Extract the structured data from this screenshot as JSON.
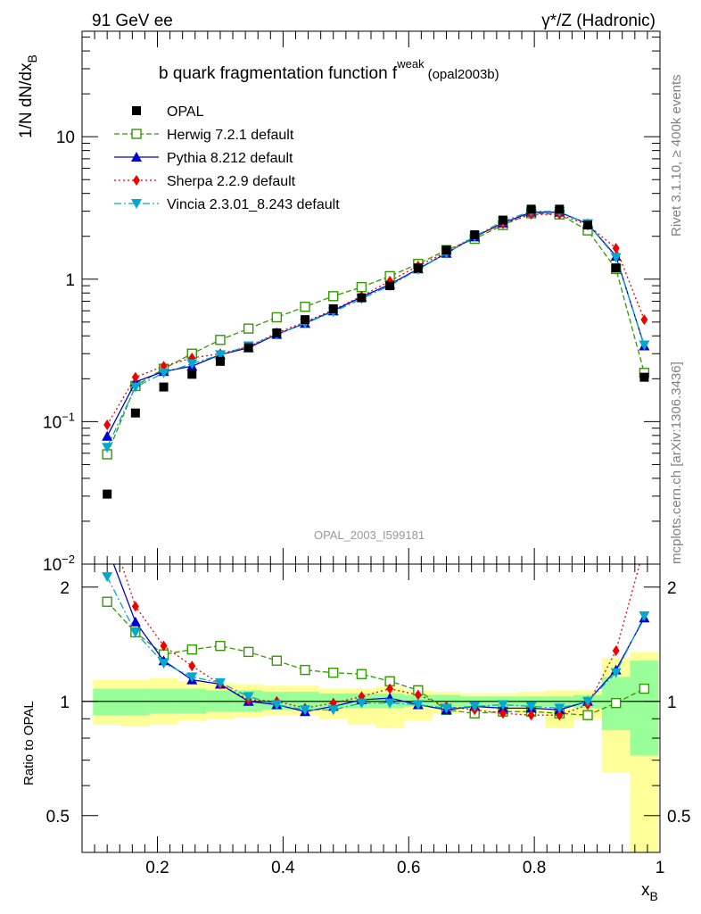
{
  "header": {
    "left": "91 GeV ee",
    "right": "γ*/Z (Hadronic)"
  },
  "plot_title": {
    "main": "b quark fragmentation function f",
    "sup": "weak",
    "sub": "(opal2003b)"
  },
  "watermark": "OPAL_2003_I599181",
  "side_text": {
    "top": "Rivet 3.1.10, ≥ 400k events",
    "bottom": "mcplots.cern.ch [arXiv:1306.3436]"
  },
  "axes": {
    "main_ylabel": "1/N dN/dx",
    "main_ylabel_sub": "B",
    "ratio_ylabel": "Ratio to OPAL",
    "xlabel": "x",
    "xlabel_sub": "B",
    "main_yticks": [
      {
        "v": 0.01,
        "base": "10",
        "exp": "−2"
      },
      {
        "v": 0.1,
        "base": "10",
        "exp": "−1"
      },
      {
        "v": 1,
        "base": "1",
        "exp": ""
      },
      {
        "v": 10,
        "base": "10",
        "exp": ""
      }
    ],
    "ratio_yticks": [
      "0.5",
      "1",
      "2"
    ],
    "xticks": [
      "0.2",
      "0.4",
      "0.6",
      "0.8",
      "1"
    ]
  },
  "legend": [
    {
      "key": "opal",
      "label": "OPAL"
    },
    {
      "key": "herwig",
      "label": "Herwig 7.2.1 default"
    },
    {
      "key": "pythia",
      "label": "Pythia 8.212 default"
    },
    {
      "key": "sherpa",
      "label": "Sherpa 2.2.9 default"
    },
    {
      "key": "vincia",
      "label": "Vincia 2.3.01_8.243 default"
    }
  ],
  "chart_data": {
    "type": "scatter",
    "title": "b quark fragmentation function f weak (opal2003b)",
    "xlabel": "xB",
    "ylabel": "1/N dN/dxB",
    "xlim": [
      0.08,
      1.0
    ],
    "ylim_main": [
      0.01,
      55
    ],
    "yscale_main": "log",
    "ylim_ratio": [
      0.4,
      2.3
    ],
    "yscale_ratio": "log",
    "legend_position": "top-left",
    "x": [
      0.12,
      0.165,
      0.21,
      0.255,
      0.3,
      0.345,
      0.39,
      0.435,
      0.48,
      0.525,
      0.57,
      0.615,
      0.66,
      0.705,
      0.75,
      0.795,
      0.84,
      0.885,
      0.93,
      0.975
    ],
    "series": [
      {
        "name": "OPAL",
        "key": "opal",
        "color": "#000000",
        "marker": "square-filled",
        "line": "none",
        "values": [
          0.031,
          0.115,
          0.175,
          0.215,
          0.265,
          0.33,
          0.42,
          0.52,
          0.62,
          0.74,
          0.9,
          1.2,
          1.6,
          2.05,
          2.6,
          3.1,
          3.1,
          2.4,
          1.2,
          0.205
        ]
      },
      {
        "name": "Herwig 7.2.1 default",
        "key": "herwig",
        "color": "#339900",
        "marker": "square-open",
        "line": "dashed",
        "values": [
          0.059,
          0.178,
          0.235,
          0.3,
          0.375,
          0.45,
          0.54,
          0.64,
          0.76,
          0.88,
          1.05,
          1.28,
          1.6,
          1.92,
          2.4,
          2.9,
          2.85,
          2.2,
          1.18,
          0.22
        ]
      },
      {
        "name": "Pythia 8.212 default",
        "key": "pythia",
        "color": "#0000cc",
        "marker": "triangle-up",
        "line": "solid",
        "values": [
          0.079,
          0.19,
          0.225,
          0.245,
          0.295,
          0.33,
          0.41,
          0.49,
          0.6,
          0.75,
          0.92,
          1.18,
          1.52,
          1.98,
          2.48,
          2.95,
          2.95,
          2.45,
          1.45,
          0.34
        ]
      },
      {
        "name": "Sherpa 2.2.9 default",
        "key": "sherpa",
        "color": "#ee0000",
        "marker": "diamond",
        "line": "dotted",
        "values": [
          0.095,
          0.205,
          0.245,
          0.28,
          0.3,
          0.335,
          0.42,
          0.5,
          0.61,
          0.76,
          0.97,
          1.24,
          1.55,
          2.0,
          2.45,
          2.85,
          2.85,
          2.4,
          1.65,
          0.52
        ]
      },
      {
        "name": "Vincia 2.3.01_8.243 default",
        "key": "vincia",
        "color": "#00aacc",
        "marker": "triangle-down",
        "line": "dashdot",
        "values": [
          0.066,
          0.175,
          0.22,
          0.255,
          0.295,
          0.34,
          0.41,
          0.49,
          0.59,
          0.73,
          0.9,
          1.17,
          1.52,
          2.0,
          2.55,
          3.0,
          2.98,
          2.45,
          1.42,
          0.345
        ]
      }
    ],
    "ratio_series": [
      {
        "key": "herwig",
        "values": [
          1.83,
          1.52,
          1.33,
          1.37,
          1.4,
          1.35,
          1.28,
          1.21,
          1.19,
          1.18,
          1.13,
          1.07,
          0.95,
          0.93,
          0.94,
          0.94,
          0.93,
          0.92,
          0.99,
          1.08
        ]
      },
      {
        "key": "pythia",
        "values": [
          2.55,
          1.62,
          1.28,
          1.14,
          1.11,
          1.0,
          0.98,
          0.94,
          0.97,
          1.01,
          1.02,
          0.98,
          0.95,
          0.97,
          0.96,
          0.96,
          0.95,
          1.0,
          1.21,
          1.66
        ]
      },
      {
        "key": "sherpa",
        "values": [
          3.0,
          1.78,
          1.4,
          1.24,
          1.11,
          1.01,
          1.0,
          0.96,
          0.99,
          1.03,
          1.08,
          1.04,
          0.97,
          0.95,
          0.93,
          0.92,
          0.92,
          0.98,
          1.36,
          2.55
        ]
      },
      {
        "key": "vincia",
        "values": [
          2.13,
          1.52,
          1.26,
          1.16,
          1.12,
          1.03,
          0.98,
          0.95,
          0.95,
          0.99,
          0.99,
          0.98,
          0.96,
          0.97,
          0.98,
          0.97,
          0.96,
          1.0,
          1.19,
          1.68
        ]
      }
    ],
    "uncertainty_bands": {
      "x_edges": [
        0.0975,
        0.1425,
        0.1875,
        0.2325,
        0.2775,
        0.3225,
        0.3675,
        0.4125,
        0.4575,
        0.5025,
        0.5475,
        0.5925,
        0.6375,
        0.6825,
        0.7275,
        0.7725,
        0.8175,
        0.8625,
        0.9075,
        0.9525,
        0.9975
      ],
      "inner": [
        [
          0.92,
          1.08
        ],
        [
          0.92,
          1.08
        ],
        [
          0.93,
          1.08
        ],
        [
          0.93,
          1.08
        ],
        [
          0.94,
          1.07
        ],
        [
          0.94,
          1.07
        ],
        [
          0.95,
          1.06
        ],
        [
          0.95,
          1.06
        ],
        [
          0.96,
          1.05
        ],
        [
          0.96,
          1.05
        ],
        [
          0.96,
          1.05
        ],
        [
          0.97,
          1.04
        ],
        [
          0.97,
          1.04
        ],
        [
          0.97,
          1.03
        ],
        [
          0.97,
          1.03
        ],
        [
          0.97,
          1.03
        ],
        [
          0.97,
          1.03
        ],
        [
          0.96,
          1.04
        ],
        [
          0.84,
          1.16
        ],
        [
          0.72,
          1.28
        ]
      ],
      "outer": [
        [
          0.87,
          1.14
        ],
        [
          0.86,
          1.14
        ],
        [
          0.87,
          1.15
        ],
        [
          0.89,
          1.13
        ],
        [
          0.9,
          1.12
        ],
        [
          0.91,
          1.11
        ],
        [
          0.92,
          1.1
        ],
        [
          0.92,
          1.1
        ],
        [
          0.9,
          1.08
        ],
        [
          0.87,
          1.08
        ],
        [
          0.85,
          1.09
        ],
        [
          0.89,
          1.07
        ],
        [
          0.93,
          1.06
        ],
        [
          0.95,
          1.05
        ],
        [
          0.95,
          1.05
        ],
        [
          0.93,
          1.06
        ],
        [
          0.85,
          1.07
        ],
        [
          0.9,
          1.07
        ],
        [
          0.65,
          1.3
        ],
        [
          0.38,
          1.35
        ]
      ]
    }
  }
}
